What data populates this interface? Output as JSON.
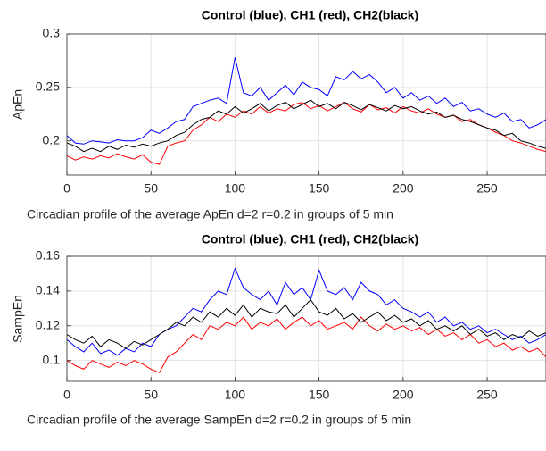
{
  "chart_data": [
    {
      "type": "line",
      "title": "Control (blue), CH1 (red), CH2(black)",
      "y_label": "ApEn",
      "x_label": "Circadian profile of the average ApEn d=2 r=0.2 in groups of 5 min",
      "x": [
        0,
        5,
        10,
        15,
        20,
        25,
        30,
        35,
        40,
        45,
        50,
        55,
        60,
        65,
        70,
        75,
        80,
        85,
        90,
        95,
        100,
        105,
        110,
        115,
        120,
        125,
        130,
        135,
        140,
        145,
        150,
        155,
        160,
        165,
        170,
        175,
        180,
        185,
        190,
        195,
        200,
        205,
        210,
        215,
        220,
        225,
        230,
        235,
        240,
        245,
        250,
        255,
        260,
        265,
        270,
        275,
        280,
        285
      ],
      "xlim": [
        0,
        285
      ],
      "xticks": [
        0,
        50,
        100,
        150,
        200,
        250
      ],
      "ylim": [
        0.168,
        0.3
      ],
      "yticks": [
        0.2,
        0.25,
        0.3
      ],
      "grid": true,
      "series": [
        {
          "name": "Control",
          "color": "#0000ff",
          "values": [
            0.205,
            0.198,
            0.197,
            0.2,
            0.199,
            0.198,
            0.201,
            0.2,
            0.2,
            0.203,
            0.21,
            0.207,
            0.212,
            0.218,
            0.22,
            0.232,
            0.235,
            0.238,
            0.24,
            0.235,
            0.278,
            0.245,
            0.242,
            0.25,
            0.238,
            0.245,
            0.252,
            0.243,
            0.255,
            0.25,
            0.248,
            0.242,
            0.26,
            0.257,
            0.265,
            0.258,
            0.262,
            0.255,
            0.245,
            0.25,
            0.24,
            0.245,
            0.238,
            0.242,
            0.235,
            0.24,
            0.232,
            0.236,
            0.228,
            0.23,
            0.225,
            0.222,
            0.226,
            0.218,
            0.22,
            0.212,
            0.215,
            0.22
          ]
        },
        {
          "name": "CH1",
          "color": "#ff0000",
          "values": [
            0.186,
            0.182,
            0.185,
            0.183,
            0.186,
            0.184,
            0.188,
            0.185,
            0.183,
            0.187,
            0.18,
            0.178,
            0.195,
            0.198,
            0.2,
            0.21,
            0.215,
            0.222,
            0.218,
            0.225,
            0.222,
            0.228,
            0.225,
            0.232,
            0.226,
            0.23,
            0.228,
            0.234,
            0.236,
            0.23,
            0.233,
            0.228,
            0.232,
            0.236,
            0.23,
            0.227,
            0.234,
            0.229,
            0.231,
            0.226,
            0.232,
            0.228,
            0.226,
            0.23,
            0.225,
            0.222,
            0.224,
            0.218,
            0.22,
            0.215,
            0.212,
            0.208,
            0.205,
            0.2,
            0.198,
            0.195,
            0.192,
            0.19
          ]
        },
        {
          "name": "CH2",
          "color": "#000000",
          "values": [
            0.198,
            0.195,
            0.19,
            0.193,
            0.19,
            0.195,
            0.192,
            0.196,
            0.194,
            0.197,
            0.195,
            0.198,
            0.2,
            0.205,
            0.208,
            0.215,
            0.22,
            0.222,
            0.228,
            0.225,
            0.232,
            0.226,
            0.23,
            0.235,
            0.228,
            0.233,
            0.236,
            0.23,
            0.234,
            0.238,
            0.232,
            0.235,
            0.23,
            0.236,
            0.233,
            0.229,
            0.234,
            0.231,
            0.228,
            0.233,
            0.23,
            0.232,
            0.228,
            0.225,
            0.227,
            0.222,
            0.224,
            0.22,
            0.218,
            0.215,
            0.212,
            0.21,
            0.205,
            0.207,
            0.2,
            0.198,
            0.195,
            0.193
          ]
        }
      ]
    },
    {
      "type": "line",
      "title": "Control (blue), CH1 (red), CH2(black)",
      "y_label": "SampEn",
      "x_label": "Circadian profile of the average SampEn d=2 r=0.2 in groups of 5 min",
      "x": [
        0,
        5,
        10,
        15,
        20,
        25,
        30,
        35,
        40,
        45,
        50,
        55,
        60,
        65,
        70,
        75,
        80,
        85,
        90,
        95,
        100,
        105,
        110,
        115,
        120,
        125,
        130,
        135,
        140,
        145,
        150,
        155,
        160,
        165,
        170,
        175,
        180,
        185,
        190,
        195,
        200,
        205,
        210,
        215,
        220,
        225,
        230,
        235,
        240,
        245,
        250,
        255,
        260,
        265,
        270,
        275,
        280,
        285
      ],
      "xlim": [
        0,
        285
      ],
      "xticks": [
        0,
        50,
        100,
        150,
        200,
        250
      ],
      "ylim": [
        0.088,
        0.16
      ],
      "yticks": [
        0.1,
        0.12,
        0.14,
        0.16
      ],
      "grid": true,
      "series": [
        {
          "name": "Control",
          "color": "#0000ff",
          "values": [
            0.112,
            0.108,
            0.105,
            0.11,
            0.104,
            0.106,
            0.103,
            0.107,
            0.105,
            0.11,
            0.108,
            0.115,
            0.118,
            0.12,
            0.125,
            0.13,
            0.128,
            0.135,
            0.14,
            0.138,
            0.153,
            0.142,
            0.138,
            0.135,
            0.14,
            0.132,
            0.145,
            0.138,
            0.142,
            0.135,
            0.152,
            0.14,
            0.138,
            0.142,
            0.135,
            0.145,
            0.14,
            0.138,
            0.132,
            0.135,
            0.13,
            0.128,
            0.125,
            0.128,
            0.122,
            0.125,
            0.12,
            0.122,
            0.118,
            0.12,
            0.116,
            0.118,
            0.115,
            0.112,
            0.114,
            0.11,
            0.112,
            0.115
          ]
        },
        {
          "name": "CH1",
          "color": "#ff0000",
          "values": [
            0.1,
            0.097,
            0.095,
            0.1,
            0.098,
            0.096,
            0.099,
            0.097,
            0.1,
            0.098,
            0.095,
            0.093,
            0.102,
            0.105,
            0.11,
            0.115,
            0.112,
            0.12,
            0.118,
            0.122,
            0.12,
            0.125,
            0.118,
            0.122,
            0.12,
            0.124,
            0.118,
            0.122,
            0.125,
            0.12,
            0.123,
            0.118,
            0.12,
            0.122,
            0.118,
            0.125,
            0.12,
            0.117,
            0.121,
            0.118,
            0.12,
            0.117,
            0.119,
            0.115,
            0.118,
            0.114,
            0.116,
            0.112,
            0.115,
            0.11,
            0.112,
            0.108,
            0.11,
            0.106,
            0.108,
            0.105,
            0.107,
            0.102
          ]
        },
        {
          "name": "CH2",
          "color": "#000000",
          "values": [
            0.115,
            0.112,
            0.11,
            0.114,
            0.108,
            0.112,
            0.11,
            0.107,
            0.111,
            0.109,
            0.112,
            0.115,
            0.118,
            0.122,
            0.12,
            0.125,
            0.122,
            0.128,
            0.125,
            0.13,
            0.126,
            0.132,
            0.125,
            0.13,
            0.128,
            0.127,
            0.132,
            0.125,
            0.13,
            0.135,
            0.128,
            0.126,
            0.13,
            0.124,
            0.127,
            0.122,
            0.125,
            0.128,
            0.123,
            0.126,
            0.122,
            0.124,
            0.12,
            0.123,
            0.118,
            0.12,
            0.117,
            0.12,
            0.115,
            0.118,
            0.114,
            0.116,
            0.112,
            0.115,
            0.113,
            0.117,
            0.114,
            0.116
          ]
        }
      ]
    }
  ]
}
